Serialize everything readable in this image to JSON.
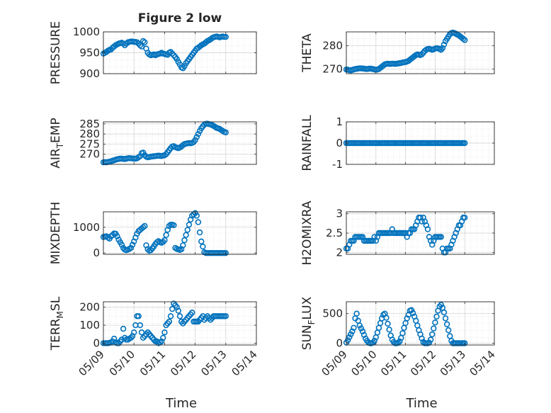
{
  "figure": {
    "title": "Figure 2 low",
    "xlabel": "Time",
    "xticks": [
      "05/09",
      "05/10",
      "05/11",
      "05/12",
      "05/13",
      "05/14"
    ]
  },
  "colors": {
    "marker": "#0072BD",
    "axis": "#262626",
    "grid": "#dcdcdc",
    "box": "#ffffff"
  },
  "chart_data": [
    {
      "type": "scatter",
      "ylabel": "PRESSURE",
      "ylim": [
        900,
        1000
      ],
      "yticks": [
        900,
        950,
        1000
      ],
      "xlim": [
        0,
        5
      ],
      "x": [
        0.0,
        0.05,
        0.1,
        0.15,
        0.2,
        0.25,
        0.3,
        0.35,
        0.4,
        0.45,
        0.5,
        0.55,
        0.6,
        0.65,
        0.7,
        0.75,
        0.8,
        0.85,
        0.9,
        0.95,
        1.0,
        1.05,
        1.1,
        1.15,
        1.2,
        1.25,
        1.3,
        1.35,
        1.4,
        1.45,
        1.5,
        1.55,
        1.6,
        1.65,
        1.7,
        1.75,
        1.8,
        1.85,
        1.9,
        1.95,
        2.0,
        2.05,
        2.1,
        2.15,
        2.2,
        2.25,
        2.3,
        2.35,
        2.4,
        2.45,
        2.5,
        2.55,
        2.6,
        2.65,
        2.7,
        2.75,
        2.8,
        2.85,
        2.9,
        2.95,
        3.0,
        3.05,
        3.1,
        3.15,
        3.2,
        3.25,
        3.3,
        3.35,
        3.4,
        3.45,
        3.5,
        3.55,
        3.6,
        3.65,
        3.7,
        3.75,
        3.8,
        3.85,
        3.9,
        3.95,
        4.0
      ],
      "y": [
        948,
        950,
        952,
        955,
        957,
        958,
        962,
        965,
        968,
        970,
        972,
        973,
        974,
        972,
        968,
        972,
        975,
        976,
        977,
        977,
        976,
        976,
        975,
        972,
        968,
        965,
        978,
        975,
        960,
        950,
        946,
        944,
        945,
        946,
        944,
        946,
        947,
        948,
        950,
        948,
        947,
        946,
        945,
        950,
        952,
        948,
        944,
        940,
        935,
        928,
        922,
        915,
        913,
        918,
        925,
        930,
        935,
        940,
        945,
        950,
        955,
        960,
        962,
        965,
        968,
        970,
        972,
        975,
        978,
        980,
        982,
        985,
        987,
        988,
        989,
        988,
        987,
        988,
        989,
        988,
        988
      ]
    },
    {
      "type": "scatter",
      "ylabel": "THETA",
      "ylim": [
        268,
        286
      ],
      "yticks": [
        270,
        280
      ],
      "xlim": [
        0,
        5
      ],
      "x": [
        0.0,
        0.05,
        0.1,
        0.15,
        0.2,
        0.25,
        0.3,
        0.35,
        0.4,
        0.45,
        0.5,
        0.55,
        0.6,
        0.65,
        0.7,
        0.75,
        0.8,
        0.85,
        0.9,
        0.95,
        1.0,
        1.05,
        1.1,
        1.15,
        1.2,
        1.25,
        1.3,
        1.35,
        1.4,
        1.45,
        1.5,
        1.55,
        1.6,
        1.65,
        1.7,
        1.75,
        1.8,
        1.85,
        1.9,
        1.95,
        2.0,
        2.05,
        2.1,
        2.15,
        2.2,
        2.25,
        2.3,
        2.35,
        2.4,
        2.45,
        2.5,
        2.55,
        2.6,
        2.65,
        2.7,
        2.75,
        2.8,
        2.85,
        2.9,
        2.95,
        3.0,
        3.05,
        3.1,
        3.15,
        3.2,
        3.25,
        3.3,
        3.35,
        3.4,
        3.45,
        3.5,
        3.55,
        3.6,
        3.65,
        3.7,
        3.75,
        3.8,
        3.85,
        3.9,
        3.95,
        4.0
      ],
      "y": [
        269.8,
        269.7,
        269.5,
        269.4,
        269.6,
        269.8,
        270.0,
        270.1,
        270.2,
        270.3,
        270.3,
        270.2,
        270.2,
        270.0,
        270.0,
        270.1,
        270.2,
        270.1,
        270.0,
        269.8,
        269.7,
        269.8,
        270.0,
        270.5,
        271.0,
        271.5,
        272.0,
        272.2,
        272.3,
        272.2,
        272.2,
        272.3,
        272.3,
        272.2,
        272.3,
        272.4,
        272.5,
        272.6,
        272.8,
        272.9,
        273.0,
        273.2,
        273.5,
        274.0,
        274.5,
        275.0,
        275.5,
        276.0,
        276.3,
        276.2,
        276.0,
        276.3,
        277.0,
        277.8,
        278.3,
        278.6,
        278.7,
        278.5,
        278.3,
        278.5,
        278.8,
        279.0,
        278.9,
        278.6,
        278.3,
        279.0,
        280.5,
        282.0,
        283.0,
        284.0,
        285.0,
        285.5,
        285.7,
        285.5,
        285.2,
        284.8,
        284.5,
        284.0,
        283.5,
        283.0,
        282.5
      ]
    },
    {
      "type": "scatter",
      "ylabel": "AIR_TEMP",
      "ylim": [
        265,
        286
      ],
      "yticks": [
        270,
        275,
        280,
        285
      ],
      "xlim": [
        0,
        5
      ],
      "x": [
        0.0,
        0.05,
        0.1,
        0.15,
        0.2,
        0.25,
        0.3,
        0.35,
        0.4,
        0.45,
        0.5,
        0.55,
        0.6,
        0.65,
        0.7,
        0.75,
        0.8,
        0.85,
        0.9,
        0.95,
        1.0,
        1.05,
        1.1,
        1.15,
        1.2,
        1.25,
        1.3,
        1.35,
        1.4,
        1.45,
        1.5,
        1.55,
        1.6,
        1.65,
        1.7,
        1.75,
        1.8,
        1.85,
        1.9,
        1.95,
        2.0,
        2.05,
        2.1,
        2.15,
        2.2,
        2.25,
        2.3,
        2.35,
        2.4,
        2.45,
        2.5,
        2.55,
        2.6,
        2.65,
        2.7,
        2.75,
        2.8,
        2.85,
        2.9,
        2.95,
        3.0,
        3.05,
        3.1,
        3.15,
        3.2,
        3.25,
        3.3,
        3.35,
        3.4,
        3.45,
        3.5,
        3.55,
        3.6,
        3.65,
        3.7,
        3.75,
        3.8,
        3.85,
        3.9,
        3.95,
        4.0
      ],
      "y": [
        266.0,
        266.1,
        266.0,
        266.2,
        266.3,
        266.5,
        266.8,
        267.0,
        267.3,
        267.5,
        267.7,
        267.8,
        267.8,
        267.7,
        267.6,
        267.8,
        268.0,
        268.1,
        268.0,
        267.9,
        267.8,
        267.8,
        268.0,
        268.5,
        269.0,
        270.5,
        270.8,
        269.5,
        268.8,
        268.5,
        268.6,
        268.8,
        268.9,
        269.0,
        269.1,
        269.2,
        269.3,
        269.2,
        269.1,
        269.3,
        269.5,
        270.0,
        271.0,
        272.0,
        273.0,
        273.8,
        274.0,
        273.5,
        273.2,
        273.0,
        273.3,
        273.8,
        274.5,
        275.0,
        275.2,
        275.4,
        275.5,
        275.4,
        275.6,
        276.0,
        277.0,
        278.5,
        280.0,
        281.5,
        282.8,
        283.8,
        284.6,
        285.0,
        285.1,
        284.9,
        284.7,
        284.4,
        284.0,
        283.5,
        283.0,
        282.8,
        282.5,
        282.0,
        281.5,
        281.0,
        280.8
      ]
    },
    {
      "type": "scatter",
      "ylabel": "RAINFALL",
      "ylim": [
        -1,
        1
      ],
      "yticks": [
        -1,
        0,
        1
      ],
      "xlim": [
        0,
        5
      ],
      "x": [
        0.0,
        0.05,
        0.1,
        0.15,
        0.2,
        0.25,
        0.3,
        0.35,
        0.4,
        0.45,
        0.5,
        0.55,
        0.6,
        0.65,
        0.7,
        0.75,
        0.8,
        0.85,
        0.9,
        0.95,
        1.0,
        1.05,
        1.1,
        1.15,
        1.2,
        1.25,
        1.3,
        1.35,
        1.4,
        1.45,
        1.5,
        1.55,
        1.6,
        1.65,
        1.7,
        1.75,
        1.8,
        1.85,
        1.9,
        1.95,
        2.0,
        2.05,
        2.1,
        2.15,
        2.2,
        2.25,
        2.3,
        2.35,
        2.4,
        2.45,
        2.5,
        2.55,
        2.6,
        2.65,
        2.7,
        2.75,
        2.8,
        2.85,
        2.9,
        2.95,
        3.0,
        3.05,
        3.1,
        3.15,
        3.2,
        3.25,
        3.3,
        3.35,
        3.4,
        3.45,
        3.5,
        3.55,
        3.6,
        3.65,
        3.7,
        3.75,
        3.8,
        3.85,
        3.9,
        3.95,
        4.0
      ],
      "y": [
        0,
        0,
        0,
        0,
        0,
        0,
        0,
        0,
        0,
        0,
        0,
        0,
        0,
        0,
        0,
        0,
        0,
        0,
        0,
        0,
        0,
        0,
        0,
        0,
        0,
        0,
        0,
        0,
        0,
        0,
        0,
        0,
        0,
        0,
        0,
        0,
        0,
        0,
        0,
        0,
        0,
        0,
        0,
        0,
        0,
        0,
        0,
        0,
        0,
        0,
        0,
        0,
        0,
        0,
        0,
        0,
        0,
        0,
        0,
        0,
        0,
        0,
        0,
        0,
        0,
        0,
        0,
        0,
        0,
        0,
        0,
        0,
        0,
        0,
        0,
        0,
        0,
        0,
        0,
        0,
        0
      ]
    },
    {
      "type": "scatter",
      "ylabel": "MIXDEPTH",
      "ylim": [
        -50,
        1600
      ],
      "yticks": [
        0,
        1000
      ],
      "xlim": [
        0,
        5
      ],
      "x": [
        0.0,
        0.05,
        0.1,
        0.15,
        0.2,
        0.25,
        0.3,
        0.35,
        0.4,
        0.45,
        0.5,
        0.55,
        0.6,
        0.65,
        0.7,
        0.75,
        0.8,
        0.85,
        0.9,
        0.95,
        1.0,
        1.05,
        1.1,
        1.15,
        1.2,
        1.25,
        1.3,
        1.35,
        1.4,
        1.45,
        1.5,
        1.55,
        1.6,
        1.65,
        1.7,
        1.75,
        1.8,
        1.85,
        1.9,
        1.95,
        2.0,
        2.05,
        2.1,
        2.15,
        2.2,
        2.25,
        2.3,
        2.35,
        2.4,
        2.45,
        2.5,
        2.55,
        2.6,
        2.65,
        2.7,
        2.75,
        2.8,
        2.85,
        2.9,
        2.95,
        3.0,
        3.05,
        3.1,
        3.15,
        3.2,
        3.25,
        3.3,
        3.35,
        3.4,
        3.45,
        3.5,
        3.55,
        3.6,
        3.65,
        3.7,
        3.75,
        3.8,
        3.85,
        3.9,
        3.95,
        4.0
      ],
      "y": [
        620,
        640,
        650,
        600,
        560,
        650,
        700,
        760,
        750,
        650,
        520,
        420,
        320,
        200,
        130,
        110,
        130,
        160,
        200,
        320,
        450,
        600,
        750,
        850,
        900,
        950,
        1000,
        1050,
        300,
        150,
        90,
        110,
        180,
        260,
        350,
        420,
        460,
        420,
        400,
        430,
        500,
        700,
        900,
        1050,
        1100,
        1100,
        1080,
        200,
        160,
        140,
        120,
        150,
        300,
        500,
        700,
        900,
        1100,
        1300,
        1450,
        1500,
        1550,
        1450,
        1200,
        800,
        450,
        250,
        30,
        0,
        0,
        0,
        0,
        0,
        0,
        0,
        0,
        0,
        0,
        0,
        0,
        0,
        0
      ]
    },
    {
      "type": "scatter",
      "ylabel": "H2OMIXRA",
      "ylim": [
        1.95,
        3.05
      ],
      "yticks": [
        2,
        2.5,
        3
      ],
      "xlim": [
        0,
        5
      ],
      "x": [
        0.0,
        0.05,
        0.1,
        0.15,
        0.2,
        0.25,
        0.3,
        0.35,
        0.4,
        0.45,
        0.5,
        0.55,
        0.6,
        0.65,
        0.7,
        0.75,
        0.8,
        0.85,
        0.9,
        0.95,
        1.0,
        1.05,
        1.1,
        1.15,
        1.2,
        1.25,
        1.3,
        1.35,
        1.4,
        1.45,
        1.5,
        1.55,
        1.6,
        1.65,
        1.7,
        1.75,
        1.8,
        1.85,
        1.9,
        1.95,
        2.0,
        2.05,
        2.1,
        2.15,
        2.2,
        2.25,
        2.3,
        2.35,
        2.4,
        2.45,
        2.5,
        2.55,
        2.6,
        2.65,
        2.7,
        2.75,
        2.8,
        2.85,
        2.9,
        2.95,
        3.0,
        3.05,
        3.1,
        3.15,
        3.2,
        3.25,
        3.3,
        3.35,
        3.4,
        3.45,
        3.5,
        3.55,
        3.6,
        3.65,
        3.7,
        3.75,
        3.8,
        3.85,
        3.9,
        3.95,
        4.0
      ],
      "y": [
        2.1,
        2.1,
        2.2,
        2.3,
        2.3,
        2.3,
        2.4,
        2.4,
        2.4,
        2.4,
        2.4,
        2.4,
        2.3,
        2.3,
        2.3,
        2.3,
        2.3,
        2.3,
        2.3,
        2.4,
        2.3,
        2.4,
        2.5,
        2.5,
        2.5,
        2.5,
        2.5,
        2.5,
        2.5,
        2.5,
        2.5,
        2.6,
        2.5,
        2.5,
        2.5,
        2.5,
        2.5,
        2.5,
        2.5,
        2.5,
        2.5,
        2.4,
        2.5,
        2.5,
        2.6,
        2.6,
        2.6,
        2.7,
        2.8,
        2.9,
        2.9,
        2.8,
        2.9,
        2.8,
        2.7,
        2.6,
        2.4,
        2.3,
        2.2,
        2.3,
        2.4,
        2.4,
        2.4,
        2.4,
        2.4,
        2.1,
        2.0,
        2.0,
        2.1,
        2.1,
        2.1,
        2.2,
        2.3,
        2.4,
        2.5,
        2.6,
        2.7,
        2.7,
        2.8,
        2.9,
        2.9
      ]
    },
    {
      "type": "scatter",
      "ylabel": "TERR_MSL",
      "ylim": [
        -10,
        230
      ],
      "yticks": [
        0,
        100,
        200
      ],
      "xlim": [
        0,
        5
      ],
      "x": [
        0.0,
        0.05,
        0.1,
        0.15,
        0.2,
        0.25,
        0.3,
        0.35,
        0.4,
        0.45,
        0.5,
        0.55,
        0.6,
        0.65,
        0.7,
        0.75,
        0.8,
        0.85,
        0.9,
        0.95,
        1.0,
        1.05,
        1.1,
        1.15,
        1.2,
        1.25,
        1.3,
        1.35,
        1.4,
        1.45,
        1.5,
        1.55,
        1.6,
        1.65,
        1.7,
        1.75,
        1.8,
        1.85,
        1.9,
        1.95,
        2.0,
        2.05,
        2.1,
        2.15,
        2.2,
        2.25,
        2.3,
        2.35,
        2.4,
        2.45,
        2.5,
        2.55,
        2.6,
        2.65,
        2.7,
        2.75,
        2.8,
        2.85,
        2.9,
        2.95,
        3.0,
        3.05,
        3.1,
        3.15,
        3.2,
        3.25,
        3.3,
        3.35,
        3.4,
        3.45,
        3.5,
        3.55,
        3.6,
        3.65,
        3.7,
        3.75,
        3.8,
        3.85,
        3.9,
        3.95,
        4.0
      ],
      "y": [
        0,
        0,
        0,
        0,
        2,
        5,
        10,
        25,
        5,
        0,
        0,
        10,
        20,
        80,
        30,
        20,
        20,
        25,
        30,
        40,
        60,
        100,
        150,
        150,
        100,
        60,
        30,
        40,
        50,
        60,
        50,
        40,
        30,
        20,
        10,
        10,
        0,
        5,
        10,
        30,
        60,
        100,
        110,
        120,
        150,
        190,
        220,
        210,
        200,
        180,
        150,
        120,
        110,
        120,
        130,
        140,
        150,
        160,
        170,
        120,
        120,
        120,
        120,
        130,
        140,
        150,
        130,
        140,
        150,
        140,
        130,
        140,
        150,
        150,
        150,
        150,
        150,
        150,
        150,
        150,
        150
      ]
    },
    {
      "type": "scatter",
      "ylabel": "SUN_FLUX",
      "ylim": [
        -30,
        700
      ],
      "yticks": [
        0,
        500
      ],
      "xlim": [
        0,
        5
      ],
      "x": [
        0.0,
        0.05,
        0.1,
        0.15,
        0.2,
        0.25,
        0.3,
        0.35,
        0.4,
        0.45,
        0.5,
        0.55,
        0.6,
        0.65,
        0.7,
        0.75,
        0.8,
        0.85,
        0.9,
        0.95,
        1.0,
        1.05,
        1.1,
        1.15,
        1.2,
        1.25,
        1.3,
        1.35,
        1.4,
        1.45,
        1.5,
        1.55,
        1.6,
        1.65,
        1.7,
        1.75,
        1.8,
        1.85,
        1.9,
        1.95,
        2.0,
        2.05,
        2.1,
        2.15,
        2.2,
        2.25,
        2.3,
        2.35,
        2.4,
        2.45,
        2.5,
        2.55,
        2.6,
        2.65,
        2.7,
        2.75,
        2.8,
        2.85,
        2.9,
        2.95,
        3.0,
        3.05,
        3.1,
        3.15,
        3.2,
        3.25,
        3.3,
        3.35,
        3.4,
        3.45,
        3.5,
        3.55,
        3.6,
        3.65,
        3.7,
        3.75,
        3.8,
        3.85,
        3.9,
        3.95,
        4.0
      ],
      "y": [
        10,
        50,
        100,
        150,
        200,
        260,
        420,
        500,
        380,
        300,
        250,
        200,
        140,
        80,
        40,
        10,
        0,
        0,
        10,
        40,
        100,
        180,
        260,
        340,
        420,
        480,
        500,
        430,
        330,
        230,
        130,
        60,
        20,
        0,
        0,
        5,
        30,
        90,
        170,
        260,
        340,
        420,
        480,
        550,
        560,
        510,
        450,
        380,
        300,
        220,
        150,
        80,
        20,
        0,
        0,
        0,
        10,
        60,
        150,
        250,
        350,
        450,
        550,
        620,
        650,
        600,
        520,
        420,
        320,
        220,
        120,
        40,
        0,
        0,
        0,
        0,
        0,
        0,
        0,
        0,
        0
      ]
    }
  ]
}
